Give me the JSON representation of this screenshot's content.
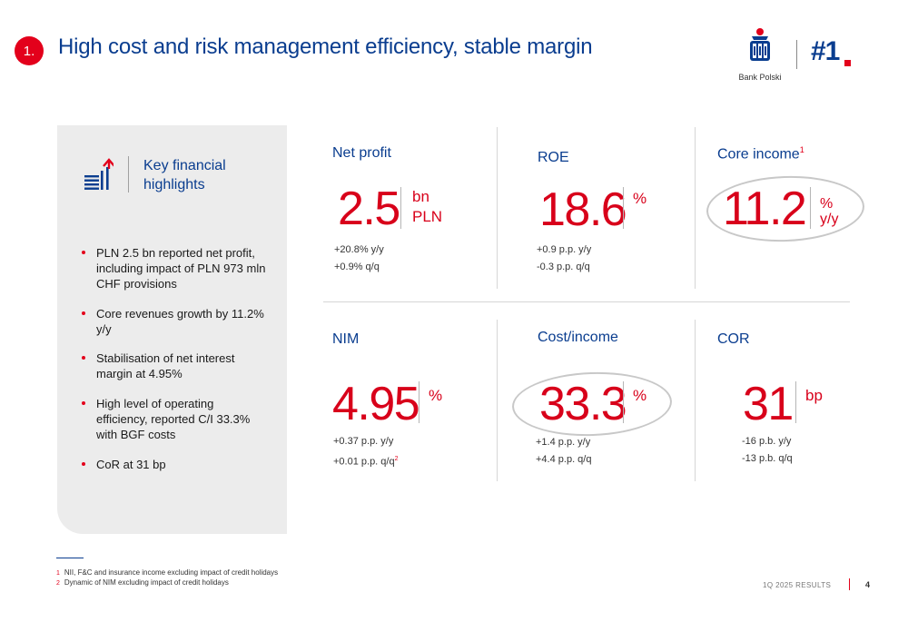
{
  "header": {
    "section_number": "1.",
    "title": "High cost and risk management efficiency, stable margin",
    "bank_name": "Bank Polski",
    "rank": "#1"
  },
  "panel": {
    "title_line1": "Key financial",
    "title_line2": "highlights",
    "bullets": [
      "PLN 2.5 bn reported net profit, including impact of PLN 973 mln CHF provisions",
      "Core revenues growth by 11.2% y/y",
      "Stabilisation of net interest margin at 4.95%",
      "High level of operating efficiency, reported C/I 33.3% with BGF costs",
      "CoR at 31 bp"
    ]
  },
  "kpis": {
    "net_profit": {
      "label": "Net profit",
      "value": "2.5",
      "unit_line1": "bn",
      "unit_line2": "PLN",
      "change1": "+20.8% y/y",
      "change2": "+0.9% q/q"
    },
    "roe": {
      "label": "ROE",
      "value": "18.6",
      "unit_line1": "%",
      "change1": "+0.9 p.p. y/y",
      "change2": "-0.3 p.p. q/q"
    },
    "core_income": {
      "label": "Core income",
      "footnote_ref": "1",
      "value": "11.2",
      "unit_line1": "%",
      "unit_line2": "y/y"
    },
    "nim": {
      "label": "NIM",
      "value": "4.95",
      "unit_line1": "%",
      "change1": "+0.37 p.p. y/y",
      "change2": "+0.01 p.p. q/q",
      "change2_ref": "2"
    },
    "cost_income": {
      "label": "Cost/income",
      "value": "33.3",
      "unit_line1": "%",
      "change1": "+1.4 p.p. y/y",
      "change2": "+4.4 p.p. q/q"
    },
    "cor": {
      "label": "COR",
      "value": "31",
      "unit_line1": "bp",
      "change1": "-16 p.b. y/y",
      "change2": "-13 p.b. q/q"
    }
  },
  "footnotes": [
    {
      "num": "1",
      "text": "NII, F&C and insurance income  excluding impact of credit holidays"
    },
    {
      "num": "2",
      "text": "Dynamic of NIM excluding impact of credit holidays"
    }
  ],
  "footer": {
    "results": "1Q 2025 RESULTS",
    "page": "4"
  },
  "colors": {
    "brand_blue": "#0a3d8f",
    "accent_red": "#e3001b",
    "panel_gray": "#ececec"
  }
}
